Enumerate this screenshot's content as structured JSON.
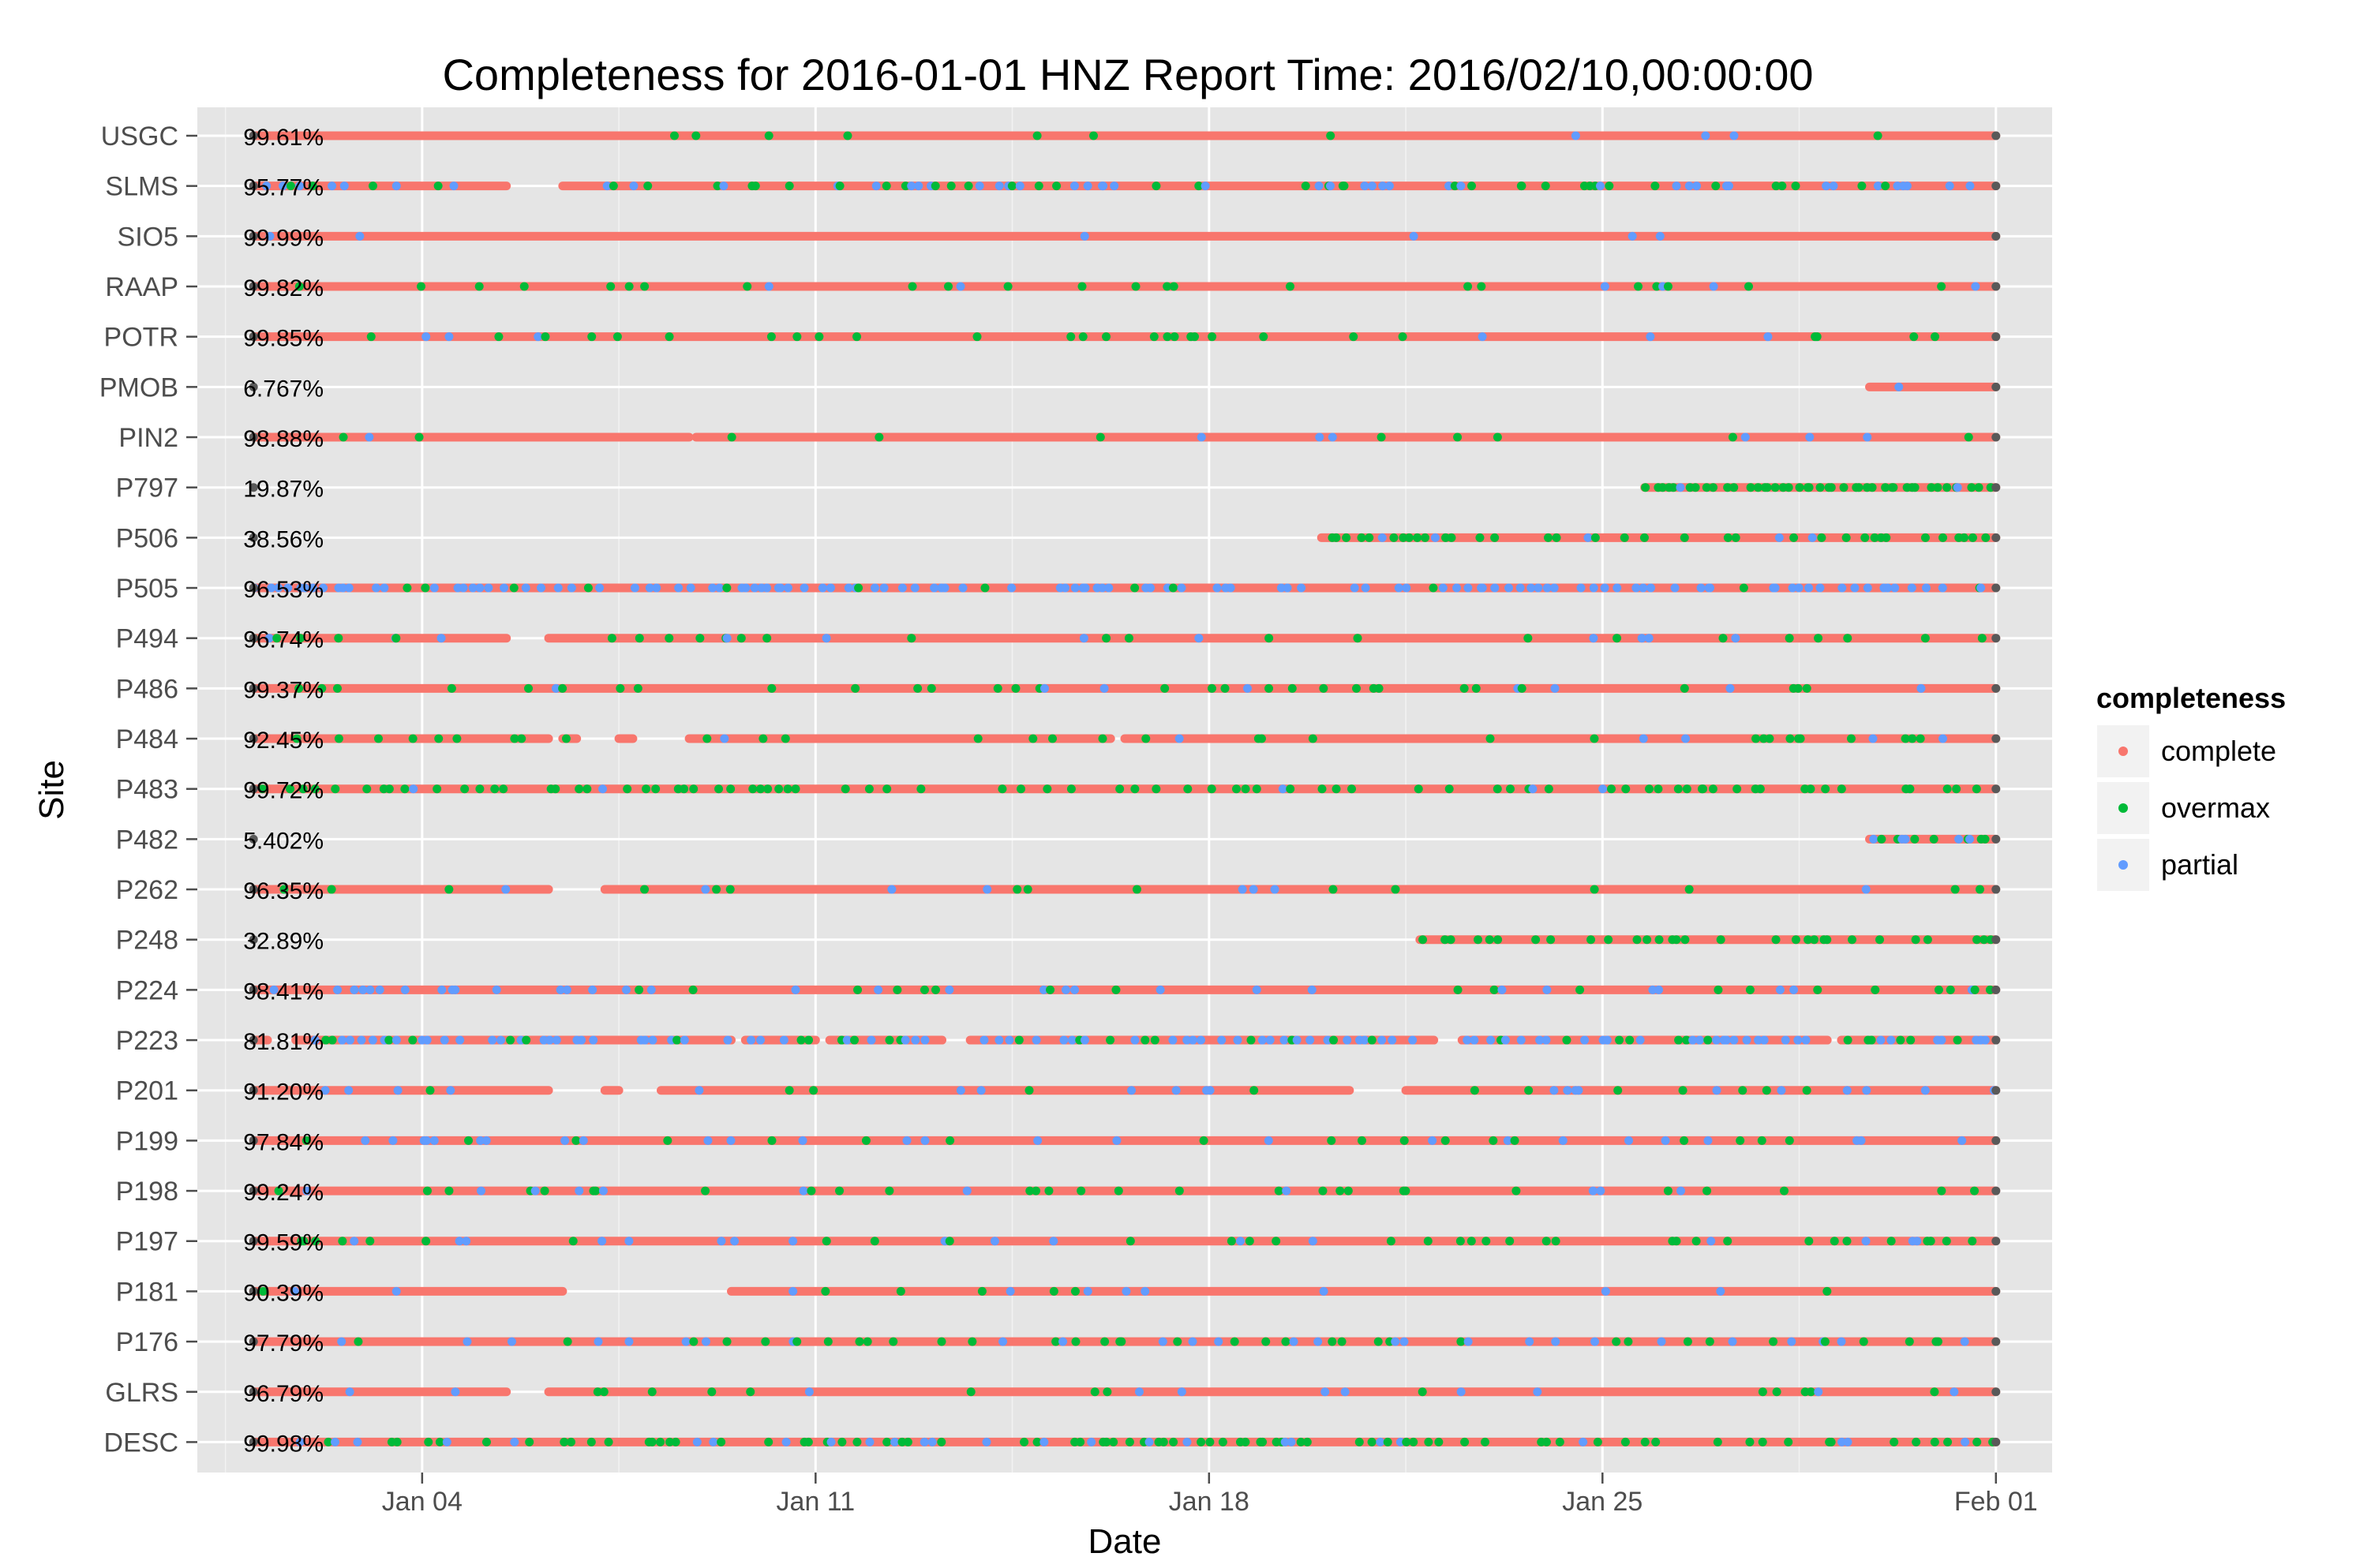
{
  "chart_data": {
    "type": "scatter",
    "title": "Completeness for  2016-01-01 HNZ  Report Time:  2016/02/10,00:00:00",
    "xlabel": "Date",
    "ylabel": "Site",
    "x_ticks": [
      "Jan 04",
      "Jan 11",
      "Jan 18",
      "Jan 25",
      "Feb 01"
    ],
    "x_tick_dates": [
      "2016-01-04",
      "2016-01-11",
      "2016-01-18",
      "2016-01-25",
      "2016-02-01"
    ],
    "xlim": [
      "2015-12-31",
      "2016-02-02"
    ],
    "grid": true,
    "legend": {
      "title": "completeness",
      "placement": "right",
      "entries": [
        {
          "label": "complete",
          "color": "#F8766D"
        },
        {
          "label": "overmax",
          "color": "#00BA38"
        },
        {
          "label": "partial",
          "color": "#619CFF"
        }
      ]
    },
    "marker_color_gray": "#595959",
    "panel_background": "#E5E5E5",
    "sites": [
      {
        "name": "USGC",
        "percent": "99.61%",
        "start": "2016-01-01",
        "end": "2016-02-01",
        "gaps": [],
        "overmax_density": 0.03,
        "partial_density": 0.03
      },
      {
        "name": "SLMS",
        "percent": "95.77%",
        "start": "2016-01-01",
        "end": "2016-02-01",
        "gaps": [
          [
            "2016-01-05T12:00",
            "2016-01-06T12:00"
          ]
        ],
        "overmax_density": 0.18,
        "partial_density": 0.18
      },
      {
        "name": "SIO5",
        "percent": "99.99%",
        "start": "2016-01-01",
        "end": "2016-02-01",
        "gaps": [],
        "overmax_density": 0.0,
        "partial_density": 0.02
      },
      {
        "name": "RAAP",
        "percent": "99.82%",
        "start": "2016-01-01",
        "end": "2016-02-01",
        "gaps": [],
        "overmax_density": 0.08,
        "partial_density": 0.02
      },
      {
        "name": "POTR",
        "percent": "99.85%",
        "start": "2016-01-01",
        "end": "2016-02-01",
        "gaps": [],
        "overmax_density": 0.08,
        "partial_density": 0.02
      },
      {
        "name": "PMOB",
        "percent": "6.767%",
        "start": "2016-01-29T18:00",
        "end": "2016-02-01",
        "gaps": [],
        "overmax_density": 0.0,
        "partial_density": 0.2
      },
      {
        "name": "PIN2",
        "percent": "98.88%",
        "start": "2016-01-01",
        "end": "2016-02-01",
        "gaps": [
          [
            "2016-01-08T18:00",
            "2016-01-08T21:00"
          ]
        ],
        "overmax_density": 0.04,
        "partial_density": 0.03
      },
      {
        "name": "P797",
        "percent": "19.87%",
        "start": "2016-01-25T18:00",
        "end": "2016-02-01",
        "gaps": [],
        "overmax_density": 0.85,
        "partial_density": 0.05
      },
      {
        "name": "P506",
        "percent": "38.56%",
        "start": "2016-01-20",
        "end": "2016-02-01",
        "gaps": [],
        "overmax_density": 0.4,
        "partial_density": 0.1
      },
      {
        "name": "P505",
        "percent": "96.53%",
        "start": "2016-01-01",
        "end": "2016-02-01",
        "gaps": [],
        "overmax_density": 0.05,
        "partial_density": 0.45
      },
      {
        "name": "P494",
        "percent": "96.74%",
        "start": "2016-01-01",
        "end": "2016-02-01",
        "gaps": [
          [
            "2016-01-05T12:00",
            "2016-01-06T06:00"
          ]
        ],
        "overmax_density": 0.12,
        "partial_density": 0.04
      },
      {
        "name": "P486",
        "percent": "99.37%",
        "start": "2016-01-01",
        "end": "2016-02-01",
        "gaps": [],
        "overmax_density": 0.14,
        "partial_density": 0.04
      },
      {
        "name": "P484",
        "percent": "92.45%",
        "start": "2016-01-01",
        "end": "2016-02-01",
        "gaps": [
          [
            "2016-01-06T06:00",
            "2016-01-06T12:00"
          ],
          [
            "2016-01-06T18:00",
            "2016-01-07T12:00"
          ],
          [
            "2016-01-07T18:00",
            "2016-01-08T18:00"
          ],
          [
            "2016-01-16T06:00",
            "2016-01-16T12:00"
          ]
        ],
        "overmax_density": 0.1,
        "partial_density": 0.05
      },
      {
        "name": "P483",
        "percent": "99.72%",
        "start": "2016-01-01",
        "end": "2016-02-01",
        "gaps": [],
        "overmax_density": 0.3,
        "partial_density": 0.02
      },
      {
        "name": "P482",
        "percent": "5.402%",
        "start": "2016-01-29T18:00",
        "end": "2016-02-01",
        "gaps": [],
        "overmax_density": 0.4,
        "partial_density": 0.35
      },
      {
        "name": "P262",
        "percent": "96.35%",
        "start": "2016-01-01",
        "end": "2016-02-01",
        "gaps": [
          [
            "2016-01-06T06:00",
            "2016-01-07T06:00"
          ]
        ],
        "overmax_density": 0.06,
        "partial_density": 0.05
      },
      {
        "name": "P248",
        "percent": "32.89%",
        "start": "2016-01-21T18:00",
        "end": "2016-02-01",
        "gaps": [],
        "overmax_density": 0.3,
        "partial_density": 0.03
      },
      {
        "name": "P224",
        "percent": "98.41%",
        "start": "2016-01-01",
        "end": "2016-02-01",
        "gaps": [],
        "overmax_density": 0.05,
        "partial_density": 0.12
      },
      {
        "name": "P223",
        "percent": "81.81%",
        "start": "2016-01-01",
        "end": "2016-02-01",
        "gaps": [
          [
            "2016-01-01T06:00",
            "2016-01-01T18:00"
          ],
          [
            "2016-01-09T12:00",
            "2016-01-09T18:00"
          ],
          [
            "2016-01-11T00:00",
            "2016-01-11T06:00"
          ],
          [
            "2016-01-13T06:00",
            "2016-01-13T18:00"
          ],
          [
            "2016-01-22T00:00",
            "2016-01-22T12:00"
          ],
          [
            "2016-01-29T00:00",
            "2016-01-29T06:00"
          ]
        ],
        "overmax_density": 0.12,
        "partial_density": 0.38
      },
      {
        "name": "P201",
        "percent": "91.20%",
        "start": "2016-01-01",
        "end": "2016-02-01",
        "gaps": [
          [
            "2016-01-06T06:00",
            "2016-01-07T06:00"
          ],
          [
            "2016-01-07T12:00",
            "2016-01-08T06:00"
          ],
          [
            "2016-01-20T12:00",
            "2016-01-21T12:00"
          ]
        ],
        "overmax_density": 0.05,
        "partial_density": 0.06
      },
      {
        "name": "P199",
        "percent": "97.84%",
        "start": "2016-01-01",
        "end": "2016-02-01",
        "gaps": [],
        "overmax_density": 0.06,
        "partial_density": 0.1
      },
      {
        "name": "P198",
        "percent": "99.24%",
        "start": "2016-01-01",
        "end": "2016-02-01",
        "gaps": [],
        "overmax_density": 0.08,
        "partial_density": 0.07
      },
      {
        "name": "P197",
        "percent": "99.59%",
        "start": "2016-01-01",
        "end": "2016-02-01",
        "gaps": [],
        "overmax_density": 0.1,
        "partial_density": 0.06
      },
      {
        "name": "P181",
        "percent": "90.39%",
        "start": "2016-01-01",
        "end": "2016-02-01",
        "gaps": [
          [
            "2016-01-06T12:00",
            "2016-01-09T12:00"
          ]
        ],
        "overmax_density": 0.04,
        "partial_density": 0.06
      },
      {
        "name": "P176",
        "percent": "97.79%",
        "start": "2016-01-01",
        "end": "2016-02-01",
        "gaps": [],
        "overmax_density": 0.12,
        "partial_density": 0.1
      },
      {
        "name": "GLRS",
        "percent": "96.79%",
        "start": "2016-01-01",
        "end": "2016-02-01",
        "gaps": [
          [
            "2016-01-05T12:00",
            "2016-01-06T06:00"
          ]
        ],
        "overmax_density": 0.06,
        "partial_density": 0.05
      },
      {
        "name": "DESC",
        "percent": "99.98%",
        "start": "2016-01-01",
        "end": "2016-02-01",
        "gaps": [],
        "overmax_density": 0.28,
        "partial_density": 0.08
      }
    ]
  }
}
